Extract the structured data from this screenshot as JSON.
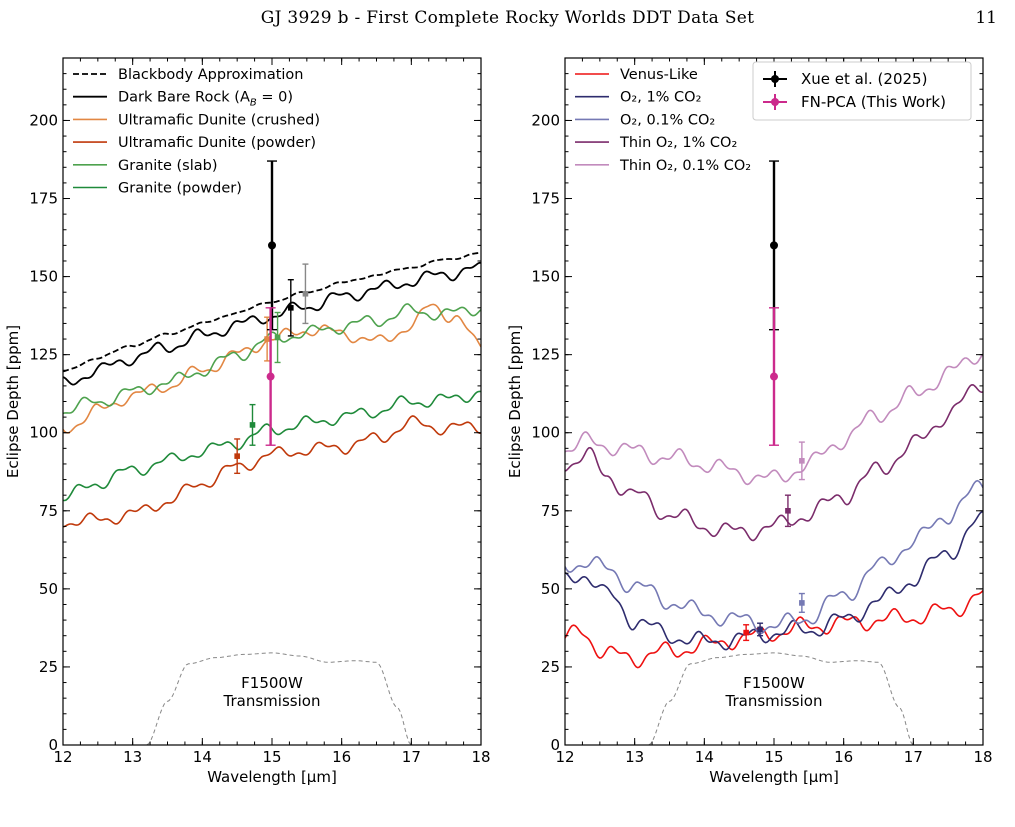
{
  "header": {
    "running_title": "GJ 3929 b - First Complete Rocky Worlds DDT Data Set",
    "page_number": "11"
  },
  "chart_data": [
    {
      "type": "line",
      "panel": "left",
      "xlabel": "Wavelength [μm]",
      "ylabel": "Eclipse Depth [ppm]",
      "xlim": [
        12,
        18
      ],
      "ylim": [
        0,
        220
      ],
      "xticks": [
        12,
        13,
        14,
        15,
        16,
        17,
        18
      ],
      "yticks": [
        0,
        25,
        50,
        75,
        100,
        125,
        150,
        175,
        200
      ],
      "legend_position": "top-left",
      "filter_label": [
        "F1500W",
        "Transmission"
      ],
      "series": [
        {
          "name": "Blackbody Approximation",
          "color": "#000000",
          "dash": "dashed",
          "x": [
            12,
            12.5,
            13,
            13.5,
            14,
            14.5,
            15,
            15.5,
            16,
            16.5,
            17,
            17.5,
            18
          ],
          "y": [
            119.5,
            124,
            128,
            131.5,
            135,
            138.5,
            142,
            145,
            148,
            150.5,
            153,
            155.5,
            157.5
          ]
        },
        {
          "name": "Dark Bare Rock (A_B = 0)",
          "color": "#000000",
          "dash": "solid",
          "x": [
            12,
            12.5,
            13,
            13.5,
            14,
            14.5,
            15,
            15.5,
            16,
            16.5,
            17,
            17.5,
            18
          ],
          "y": [
            115.5,
            120,
            124,
            127.5,
            131,
            134.5,
            137.5,
            140.5,
            143.5,
            146,
            148.5,
            151,
            152.5
          ]
        },
        {
          "name": "Ultramafic Dunite (crushed)",
          "color": "#e28743",
          "dash": "solid",
          "x": [
            12,
            12.5,
            13,
            13.5,
            14,
            14.5,
            15,
            15.5,
            16,
            16.5,
            17,
            17.3,
            17.6,
            18
          ],
          "y": [
            101,
            107,
            112,
            115,
            120,
            125,
            130,
            133,
            132,
            129,
            134,
            141,
            137,
            128
          ]
        },
        {
          "name": "Ultramafic Dunite (powder)",
          "color": "#c0390b",
          "dash": "solid",
          "x": [
            12,
            12.5,
            13,
            13.5,
            14,
            14.5,
            15,
            15.5,
            16,
            16.5,
            17,
            17.5,
            18
          ],
          "y": [
            71.5,
            72,
            74,
            78,
            84,
            89,
            93,
            94.5,
            95.5,
            98,
            103,
            101.5,
            102
          ]
        },
        {
          "name": "Granite (slab)",
          "color": "#4ea24e",
          "dash": "solid",
          "x": [
            12,
            12.5,
            13,
            13.5,
            14,
            14.5,
            15,
            15.5,
            16,
            16.5,
            17,
            17.5,
            18
          ],
          "y": [
            107,
            110,
            113,
            116,
            120,
            125,
            130,
            132,
            134,
            136,
            139,
            138,
            140
          ]
        },
        {
          "name": "Granite (powder)",
          "color": "#1f8a3a",
          "dash": "solid",
          "x": [
            12,
            12.5,
            13,
            13.5,
            14,
            14.5,
            15,
            15.5,
            16,
            16.5,
            17,
            17.5,
            18
          ],
          "y": [
            79,
            84,
            88,
            91,
            94,
            97,
            101,
            103,
            105,
            107,
            110,
            110.5,
            113
          ]
        },
        {
          "name": "F1500W Transmission",
          "color": "#888888",
          "dash": "dashed",
          "x": [
            13.2,
            13.5,
            13.8,
            14.2,
            14.6,
            15,
            15.4,
            15.8,
            16.2,
            16.5,
            16.8,
            17.0
          ],
          "y": [
            0,
            14,
            26,
            28,
            29,
            29.5,
            28.5,
            26.5,
            27,
            26.5,
            12,
            0
          ]
        }
      ],
      "points": [
        {
          "x": 14.5,
          "y": 92.5,
          "err": 5.5,
          "color": "#c0390b"
        },
        {
          "x": 14.72,
          "y": 102.5,
          "err": 6.5,
          "color": "#1f8a3a"
        },
        {
          "x": 14.93,
          "y": 130,
          "err": 7,
          "color": "#e28743"
        },
        {
          "x": 15.08,
          "y": 130.5,
          "err": 8,
          "color": "#4ea24e"
        },
        {
          "x": 15.27,
          "y": 140,
          "err": 9,
          "color": "#000000"
        },
        {
          "x": 15.48,
          "y": 144.5,
          "err": 9.5,
          "color": "#888888"
        },
        {
          "x": 15.0,
          "y": 160,
          "err": 27,
          "color": "#000000",
          "big": true
        },
        {
          "x": 14.98,
          "y": 118,
          "err": 22,
          "color": "#cc2a8c",
          "big": true
        }
      ]
    },
    {
      "type": "line",
      "panel": "right",
      "xlabel": "Wavelength [μm]",
      "ylabel": "Eclipse Depth [ppm]",
      "xlim": [
        12,
        18
      ],
      "ylim": [
        0,
        220
      ],
      "xticks": [
        12,
        13,
        14,
        15,
        16,
        17,
        18
      ],
      "yticks": [
        0,
        25,
        50,
        75,
        100,
        125,
        150,
        175,
        200
      ],
      "legend_position": "top-left",
      "filter_label": [
        "F1500W",
        "Transmission"
      ],
      "data_legend": [
        "Xue et al. (2025)",
        "FN-PCA (This Work)"
      ],
      "series": [
        {
          "name": "Venus-Like",
          "color": "#ee1111",
          "dash": "solid",
          "x": [
            12,
            12.2,
            12.6,
            13,
            13.5,
            14,
            14.5,
            15,
            15.5,
            16,
            16.5,
            17,
            17.5,
            18
          ],
          "y": [
            33,
            37,
            29,
            28,
            30,
            32,
            34,
            36,
            38,
            39,
            40,
            41,
            43,
            48
          ]
        },
        {
          "name": "O₂, 1% CO₂",
          "color": "#2e2c6e",
          "dash": "solid",
          "x": [
            12,
            12.3,
            12.6,
            13,
            13.5,
            14,
            14.5,
            15,
            15.5,
            16,
            16.5,
            17,
            17.5,
            18
          ],
          "y": [
            52,
            55,
            48,
            40,
            35,
            33,
            34,
            36,
            37,
            40,
            46,
            53,
            62,
            72
          ]
        },
        {
          "name": "O₂, 0.1% CO₂",
          "color": "#7579b4",
          "dash": "solid",
          "x": [
            12,
            12.3,
            12.6,
            13,
            13.5,
            14,
            14.5,
            15,
            15.5,
            16,
            16.5,
            17,
            17.5,
            18
          ],
          "y": [
            57,
            59,
            56,
            51,
            46,
            42,
            40,
            38,
            41,
            48,
            57,
            65,
            74,
            83
          ]
        },
        {
          "name": "Thin O₂, 1% CO₂",
          "color": "#7b2c6b",
          "dash": "solid",
          "x": [
            12,
            12.3,
            12.6,
            13,
            13.5,
            14,
            14.5,
            15,
            15.5,
            16,
            16.5,
            17,
            17.5,
            18
          ],
          "y": [
            90,
            93,
            86,
            80,
            74,
            70,
            68,
            70,
            74,
            80,
            88,
            96,
            106,
            116
          ]
        },
        {
          "name": "Thin O₂, 0.1% CO₂",
          "color": "#c28bbd",
          "dash": "solid",
          "x": [
            12,
            12.3,
            12.6,
            13,
            13.5,
            14,
            14.5,
            15,
            15.5,
            16,
            16.5,
            17,
            17.5,
            18
          ],
          "y": [
            95,
            97,
            96,
            94,
            92,
            90,
            87,
            85,
            90,
            98,
            106,
            112,
            119,
            126
          ]
        },
        {
          "name": "F1500W Transmission",
          "color": "#888888",
          "dash": "dashed",
          "x": [
            13.2,
            13.5,
            13.8,
            14.2,
            14.6,
            15,
            15.4,
            15.8,
            16.2,
            16.5,
            16.8,
            17.0
          ],
          "y": [
            0,
            14,
            26,
            28,
            29,
            29.5,
            28.5,
            26.5,
            27,
            26.5,
            12,
            0
          ]
        }
      ],
      "points": [
        {
          "x": 14.6,
          "y": 36,
          "err": 2.5,
          "color": "#ee1111"
        },
        {
          "x": 14.8,
          "y": 37,
          "err": 2,
          "color": "#2e2c6e"
        },
        {
          "x": 15.4,
          "y": 45.5,
          "err": 3,
          "color": "#7579b4"
        },
        {
          "x": 15.2,
          "y": 75,
          "err": 5,
          "color": "#7b2c6b"
        },
        {
          "x": 15.4,
          "y": 91,
          "err": 6,
          "color": "#c28bbd"
        },
        {
          "x": 15.0,
          "y": 160,
          "err": 27,
          "color": "#000000",
          "big": true
        },
        {
          "x": 15.0,
          "y": 118,
          "err": 22,
          "color": "#cc2a8c",
          "big": true
        }
      ]
    }
  ]
}
